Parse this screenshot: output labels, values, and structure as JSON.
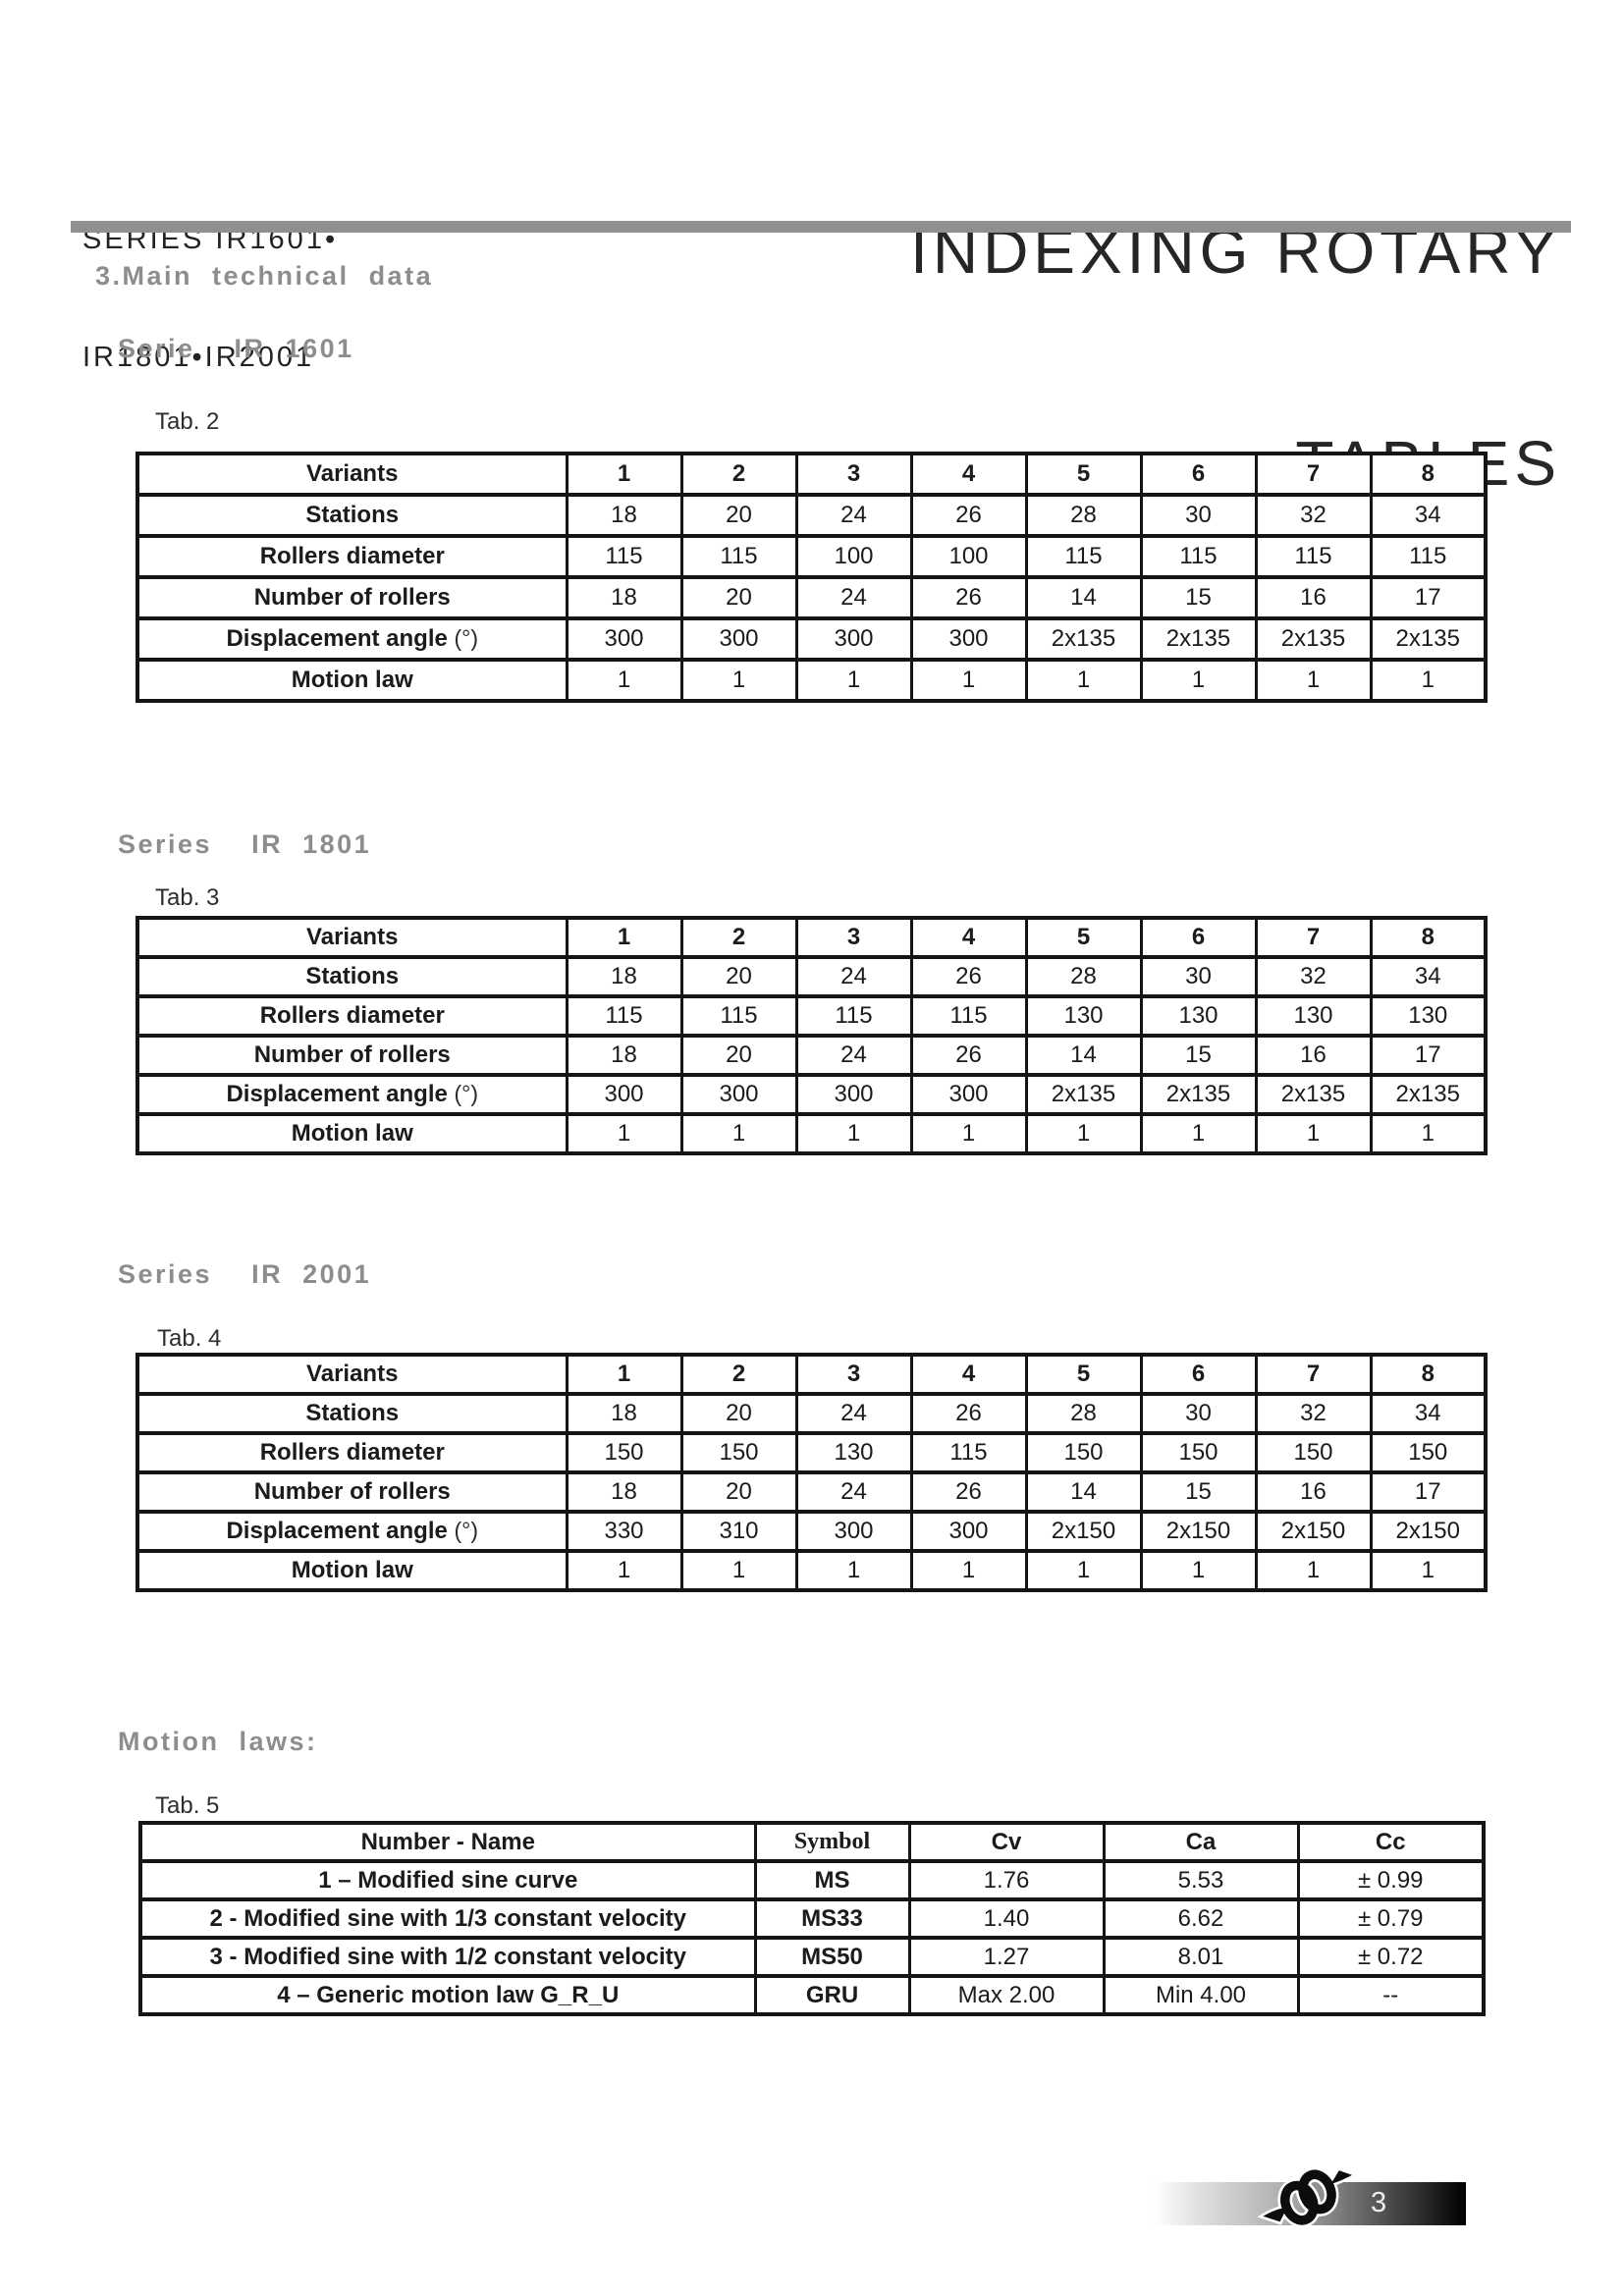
{
  "header": {
    "series_line1": "SERIES IR1601•",
    "series_line2": "IR1801•IR2001",
    "title_line1": "INDEXING ROTARY",
    "title_line2": "TABLES"
  },
  "main_section_heading": "3.Main technical data",
  "colors": {
    "heading_gray": "#8d8d8d",
    "divider_gray": "#8f8f8f",
    "table_border": "#151515",
    "text": "#1b1b1b"
  },
  "sections": [
    {
      "heading": "Serie  IR 1601",
      "tab_label": "Tab. 2",
      "header_label": "Variants",
      "variants": [
        "1",
        "2",
        "3",
        "4",
        "5",
        "6",
        "7",
        "8"
      ],
      "rows": [
        {
          "label": "Stations",
          "suffix": "",
          "values": [
            "18",
            "20",
            "24",
            "26",
            "28",
            "30",
            "32",
            "34"
          ]
        },
        {
          "label": "Rollers diameter",
          "suffix": "",
          "values": [
            "115",
            "115",
            "100",
            "100",
            "115",
            "115",
            "115",
            "115"
          ]
        },
        {
          "label": "Number of rollers",
          "suffix": "",
          "values": [
            "18",
            "20",
            "24",
            "26",
            "14",
            "15",
            "16",
            "17"
          ]
        },
        {
          "label": "Displacement angle",
          "suffix": "(°)",
          "values": [
            "300",
            "300",
            "300",
            "300",
            "2x135",
            "2x135",
            "2x135",
            "2x135"
          ]
        },
        {
          "label": "Motion law",
          "suffix": "",
          "values": [
            "1",
            "1",
            "1",
            "1",
            "1",
            "1",
            "1",
            "1"
          ]
        }
      ]
    },
    {
      "heading": "Series  IR 1801",
      "tab_label": "Tab. 3",
      "header_label": "Variants",
      "variants": [
        "1",
        "2",
        "3",
        "4",
        "5",
        "6",
        "7",
        "8"
      ],
      "rows": [
        {
          "label": "Stations",
          "suffix": "",
          "values": [
            "18",
            "20",
            "24",
            "26",
            "28",
            "30",
            "32",
            "34"
          ]
        },
        {
          "label": "Rollers diameter",
          "suffix": "",
          "values": [
            "115",
            "115",
            "115",
            "115",
            "130",
            "130",
            "130",
            "130"
          ]
        },
        {
          "label": "Number of rollers",
          "suffix": "",
          "values": [
            "18",
            "20",
            "24",
            "26",
            "14",
            "15",
            "16",
            "17"
          ]
        },
        {
          "label": "Displacement angle",
          "suffix": "(°)",
          "values": [
            "300",
            "300",
            "300",
            "300",
            "2x135",
            "2x135",
            "2x135",
            "2x135"
          ]
        },
        {
          "label": "Motion law",
          "suffix": "",
          "values": [
            "1",
            "1",
            "1",
            "1",
            "1",
            "1",
            "1",
            "1"
          ]
        }
      ]
    },
    {
      "heading": "Series  IR 2001",
      "tab_label": "Tab. 4",
      "header_label": "Variants",
      "variants": [
        "1",
        "2",
        "3",
        "4",
        "5",
        "6",
        "7",
        "8"
      ],
      "rows": [
        {
          "label": "Stations",
          "suffix": "",
          "values": [
            "18",
            "20",
            "24",
            "26",
            "28",
            "30",
            "32",
            "34"
          ]
        },
        {
          "label": "Rollers diameter",
          "suffix": "",
          "values": [
            "150",
            "150",
            "130",
            "115",
            "150",
            "150",
            "150",
            "150"
          ]
        },
        {
          "label": "Number of rollers",
          "suffix": "",
          "values": [
            "18",
            "20",
            "24",
            "26",
            "14",
            "15",
            "16",
            "17"
          ]
        },
        {
          "label": "Displacement angle",
          "suffix": "(°)",
          "values": [
            "330",
            "310",
            "300",
            "300",
            "2x150",
            "2x150",
            "2x150",
            "2x150"
          ]
        },
        {
          "label": "Motion law",
          "suffix": "",
          "values": [
            "1",
            "1",
            "1",
            "1",
            "1",
            "1",
            "1",
            "1"
          ]
        }
      ]
    }
  ],
  "motion_laws": {
    "heading": "Motion laws:",
    "tab_label": "Tab. 5",
    "headers": [
      "Number - Name",
      "Symbol",
      "Cv",
      "Ca",
      "Cc"
    ],
    "rows": [
      {
        "name": "1 – Modified sine curve",
        "symbol": "MS",
        "cv": "1.76",
        "ca": "5.53",
        "cc": "± 0.99"
      },
      {
        "name": "2 - Modified sine with 1/3 constant velocity",
        "symbol": "MS33",
        "cv": "1.40",
        "ca": "6.62",
        "cc": "± 0.79"
      },
      {
        "name": "3 - Modified sine with 1/2 constant velocity",
        "symbol": "MS50",
        "cv": "1.27",
        "ca": "8.01",
        "cc": "± 0.72"
      },
      {
        "name": "4 – Generic motion law  G_R_U",
        "symbol": "GRU",
        "cv": "Max 2.00",
        "ca": "Min 4.00",
        "cc": "--"
      }
    ]
  },
  "footer": {
    "page_number": "3",
    "logo": "knot-logo"
  }
}
